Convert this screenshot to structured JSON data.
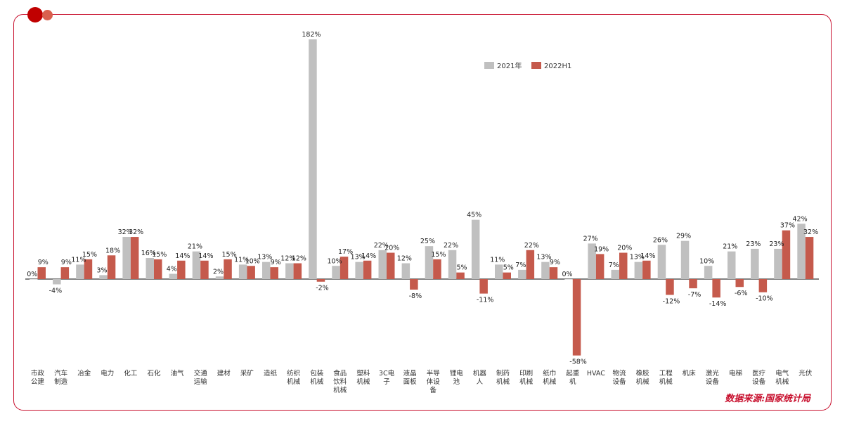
{
  "source_note": "数据来源:国家统计局",
  "colors": {
    "frame": "#c8102e",
    "s2021": "#c0c0c0",
    "s2022": "#c55a4c"
  },
  "chart_data": {
    "type": "bar",
    "series": [
      {
        "name": "2021年",
        "color": "#c0c0c0",
        "values": [
          0,
          -4,
          11,
          3,
          32,
          16,
          4,
          21,
          2,
          11,
          13,
          12,
          182,
          10,
          13,
          22,
          12,
          25,
          22,
          45,
          11,
          7,
          13,
          0,
          27,
          7,
          13,
          26,
          29,
          10,
          21,
          23,
          23,
          42
        ]
      },
      {
        "name": "2022H1",
        "color": "#c55a4c",
        "values": [
          9,
          9,
          15,
          18,
          32,
          15,
          14,
          14,
          15,
          10,
          9,
          12,
          -2,
          17,
          14,
          20,
          -8,
          15,
          5,
          -11,
          5,
          22,
          9,
          -58,
          19,
          20,
          14,
          -12,
          -7,
          -14,
          -6,
          -10,
          37,
          32
        ]
      }
    ],
    "categories": [
      [
        "市政",
        "公建"
      ],
      [
        "汽车",
        "制造"
      ],
      [
        "冶金"
      ],
      [
        "电力"
      ],
      [
        "化工"
      ],
      [
        "石化"
      ],
      [
        "油气"
      ],
      [
        "交通",
        "运输"
      ],
      [
        "建材"
      ],
      [
        "采矿"
      ],
      [
        "造纸"
      ],
      [
        "纺织",
        "机械"
      ],
      [
        "包装",
        "机械"
      ],
      [
        "食品",
        "饮料",
        "机械"
      ],
      [
        "塑料",
        "机械"
      ],
      [
        "3C电",
        "子"
      ],
      [
        "液晶",
        "面板"
      ],
      [
        "半导",
        "体设",
        "备"
      ],
      [
        "锂电",
        "池"
      ],
      [
        "机器",
        "人"
      ],
      [
        "制药",
        "机械"
      ],
      [
        "印刷",
        "机械"
      ],
      [
        "纸巾",
        "机械"
      ],
      [
        "起重",
        "机"
      ],
      [
        "HVAC"
      ],
      [
        "物流",
        "设备"
      ],
      [
        "橡胶",
        "机械"
      ],
      [
        "工程",
        "机械"
      ],
      [
        "机床"
      ],
      [
        "激光",
        "设备"
      ],
      [
        "电梯"
      ],
      [
        "医疗",
        "设备"
      ],
      [
        "电气",
        "机械"
      ],
      [
        "光伏"
      ]
    ],
    "legend_position": "top-right",
    "value_format": "percent"
  }
}
